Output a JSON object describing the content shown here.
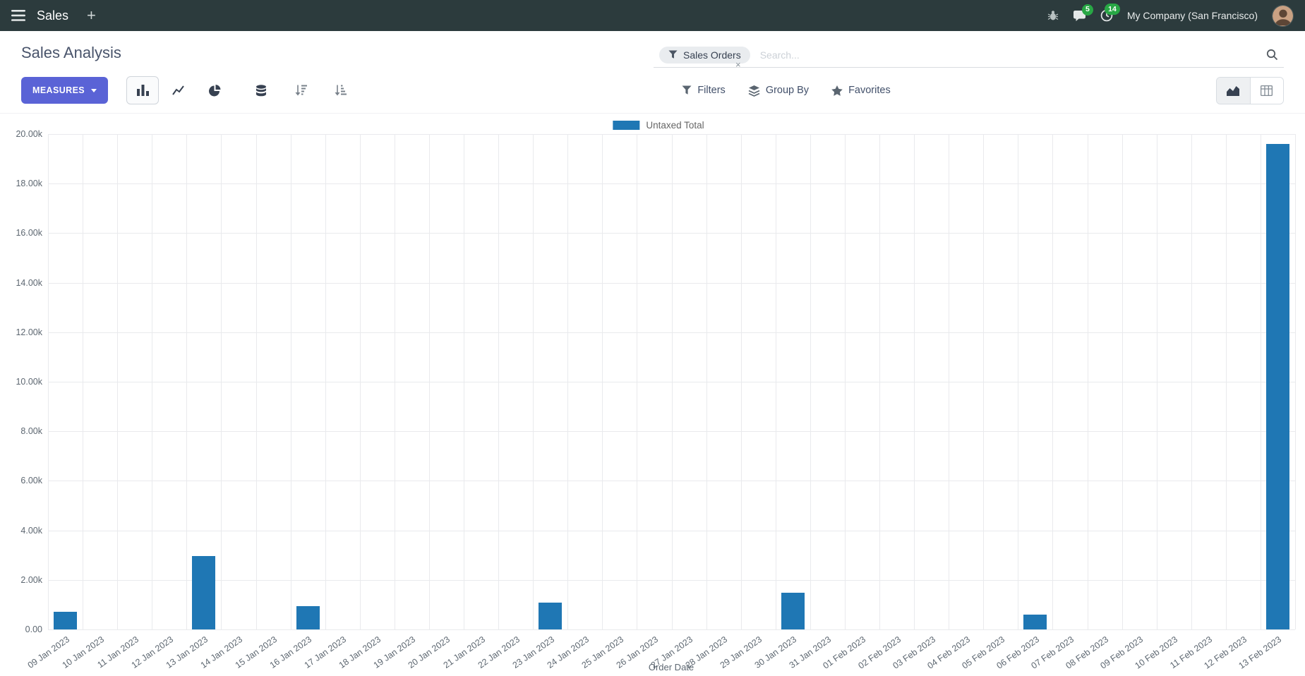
{
  "topbar": {
    "app_name": "Sales",
    "plus_label": "+",
    "messages_count": "5",
    "activities_count": "14",
    "company": "My Company (San Francisco)"
  },
  "control_panel": {
    "title": "Sales Analysis",
    "search": {
      "facet_label": "Sales Orders",
      "remove_glyph": "×",
      "placeholder": "Search..."
    },
    "measures_label": "MEASURES",
    "buttons": {
      "filters": "Filters",
      "group_by": "Group By",
      "favorites": "Favorites"
    }
  },
  "colors": {
    "bar": "#1f77b4",
    "primary_button": "#5a63d6",
    "badge_green": "#28a745",
    "topbar_bg": "#2c3b3d",
    "facet_bg": "#e9ecef"
  },
  "chart_data": {
    "type": "bar",
    "title": "",
    "xlabel": "Order Date",
    "ylabel": "",
    "ylim": [
      0,
      20000
    ],
    "grid": true,
    "legend_position": "top",
    "legend": [
      {
        "name": "Untaxed Total",
        "color": "#1f77b4"
      }
    ],
    "y_ticks": [
      "0.00",
      "2.00k",
      "4.00k",
      "6.00k",
      "8.00k",
      "10.00k",
      "12.00k",
      "14.00k",
      "16.00k",
      "18.00k",
      "20.00k"
    ],
    "categories": [
      "09 Jan 2023",
      "10 Jan 2023",
      "11 Jan 2023",
      "12 Jan 2023",
      "13 Jan 2023",
      "14 Jan 2023",
      "15 Jan 2023",
      "16 Jan 2023",
      "17 Jan 2023",
      "18 Jan 2023",
      "19 Jan 2023",
      "20 Jan 2023",
      "21 Jan 2023",
      "22 Jan 2023",
      "23 Jan 2023",
      "24 Jan 2023",
      "25 Jan 2023",
      "26 Jan 2023",
      "27 Jan 2023",
      "28 Jan 2023",
      "29 Jan 2023",
      "30 Jan 2023",
      "31 Jan 2023",
      "01 Feb 2023",
      "02 Feb 2023",
      "03 Feb 2023",
      "04 Feb 2023",
      "05 Feb 2023",
      "06 Feb 2023",
      "07 Feb 2023",
      "08 Feb 2023",
      "09 Feb 2023",
      "10 Feb 2023",
      "11 Feb 2023",
      "12 Feb 2023",
      "13 Feb 2023"
    ],
    "values": [
      720,
      0,
      0,
      0,
      2950,
      0,
      0,
      950,
      0,
      0,
      0,
      0,
      0,
      0,
      1080,
      0,
      0,
      0,
      0,
      0,
      0,
      1490,
      0,
      0,
      0,
      0,
      0,
      0,
      610,
      0,
      0,
      0,
      0,
      0,
      0,
      19600
    ]
  }
}
